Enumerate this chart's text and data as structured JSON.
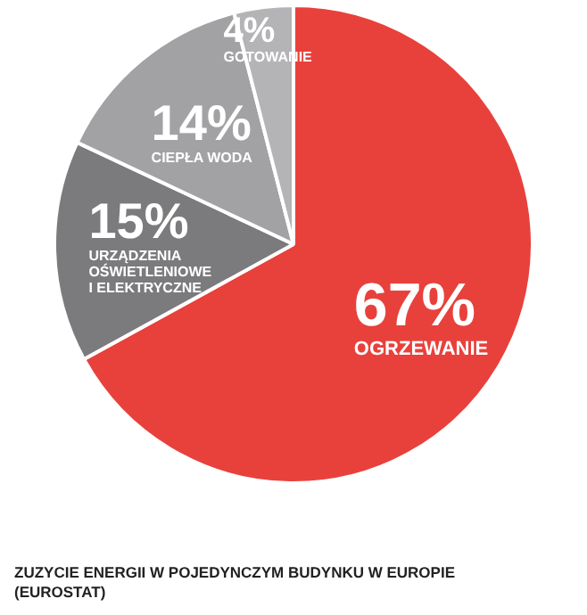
{
  "chart_data": {
    "type": "pie",
    "categories": [
      "OGRZEWANIE",
      "URZĄDZENIA OŚWIETLENIOWE I ELEKTRYCZNE",
      "CIEPŁA WODA",
      "GOTOWANIE"
    ],
    "values": [
      67,
      15,
      14,
      4
    ],
    "colors": [
      "#e8413c",
      "#7b7b7d",
      "#a2a2a4",
      "#b4b4b6"
    ],
    "value_labels": [
      "67%",
      "15%",
      "14%",
      "4%"
    ],
    "legend": false,
    "annotations": [
      "ZUZYCIE ENERGII W POJEDYNCZYM BUDYNKU W EUROPIE (EUROSTAT)"
    ]
  }
}
